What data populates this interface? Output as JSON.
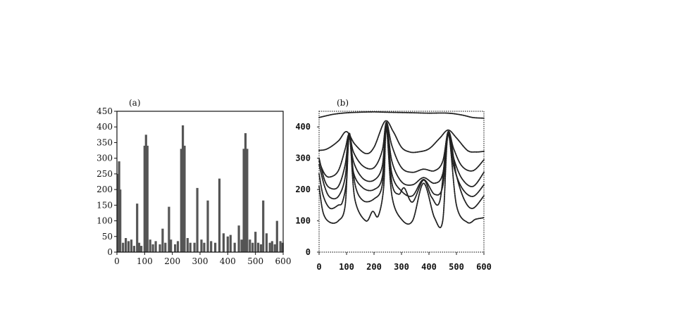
{
  "chart_data": [
    {
      "type": "bar",
      "panel_label": "(a)",
      "xlim": [
        0,
        600
      ],
      "ylim": [
        0,
        450
      ],
      "x_ticks": [
        0,
        100,
        200,
        300,
        400,
        500,
        600
      ],
      "y_ticks": [
        0,
        50,
        100,
        150,
        200,
        250,
        300,
        350,
        400,
        450
      ],
      "grid": false,
      "bar_color": "#555555",
      "bars": [
        {
          "x": 3,
          "y": 250
        },
        {
          "x": 8,
          "y": 290
        },
        {
          "x": 12,
          "y": 200
        },
        {
          "x": 22,
          "y": 30
        },
        {
          "x": 32,
          "y": 45
        },
        {
          "x": 42,
          "y": 35
        },
        {
          "x": 52,
          "y": 40
        },
        {
          "x": 62,
          "y": 20
        },
        {
          "x": 73,
          "y": 155
        },
        {
          "x": 80,
          "y": 30
        },
        {
          "x": 88,
          "y": 20
        },
        {
          "x": 100,
          "y": 340
        },
        {
          "x": 105,
          "y": 375
        },
        {
          "x": 110,
          "y": 340
        },
        {
          "x": 120,
          "y": 40
        },
        {
          "x": 130,
          "y": 25
        },
        {
          "x": 140,
          "y": 35
        },
        {
          "x": 155,
          "y": 25
        },
        {
          "x": 165,
          "y": 75
        },
        {
          "x": 175,
          "y": 30
        },
        {
          "x": 188,
          "y": 145
        },
        {
          "x": 195,
          "y": 40
        },
        {
          "x": 210,
          "y": 25
        },
        {
          "x": 220,
          "y": 35
        },
        {
          "x": 232,
          "y": 330
        },
        {
          "x": 238,
          "y": 405
        },
        {
          "x": 244,
          "y": 340
        },
        {
          "x": 255,
          "y": 45
        },
        {
          "x": 265,
          "y": 30
        },
        {
          "x": 280,
          "y": 30
        },
        {
          "x": 290,
          "y": 205
        },
        {
          "x": 305,
          "y": 40
        },
        {
          "x": 315,
          "y": 30
        },
        {
          "x": 328,
          "y": 165
        },
        {
          "x": 340,
          "y": 35
        },
        {
          "x": 355,
          "y": 30
        },
        {
          "x": 370,
          "y": 235
        },
        {
          "x": 385,
          "y": 60
        },
        {
          "x": 400,
          "y": 50
        },
        {
          "x": 410,
          "y": 55
        },
        {
          "x": 425,
          "y": 30
        },
        {
          "x": 440,
          "y": 85
        },
        {
          "x": 450,
          "y": 40
        },
        {
          "x": 458,
          "y": 330
        },
        {
          "x": 464,
          "y": 380
        },
        {
          "x": 470,
          "y": 330
        },
        {
          "x": 480,
          "y": 40
        },
        {
          "x": 490,
          "y": 30
        },
        {
          "x": 500,
          "y": 65
        },
        {
          "x": 510,
          "y": 30
        },
        {
          "x": 520,
          "y": 25
        },
        {
          "x": 528,
          "y": 165
        },
        {
          "x": 540,
          "y": 60
        },
        {
          "x": 552,
          "y": 30
        },
        {
          "x": 560,
          "y": 35
        },
        {
          "x": 570,
          "y": 25
        },
        {
          "x": 578,
          "y": 100
        },
        {
          "x": 590,
          "y": 35
        },
        {
          "x": 598,
          "y": 30
        }
      ]
    },
    {
      "type": "line",
      "panel_label": "(b)",
      "xlim": [
        0,
        600
      ],
      "ylim": [
        0,
        450
      ],
      "x_ticks": [
        0,
        100,
        200,
        300,
        400,
        500,
        600
      ],
      "y_ticks": [
        0,
        100,
        200,
        300,
        400
      ],
      "grid": false,
      "line_color": "#222222",
      "series": [
        {
          "x": [
            0,
            50,
            100,
            150,
            200,
            240,
            300,
            350,
            400,
            470,
            520,
            560,
            600
          ],
          "y": [
            430,
            440,
            445,
            447,
            448,
            447,
            446,
            445,
            444,
            444,
            438,
            430,
            428
          ]
        },
        {
          "x": [
            0,
            30,
            70,
            100,
            130,
            170,
            200,
            240,
            270,
            300,
            330,
            360,
            400,
            440,
            470,
            500,
            540,
            570,
            600
          ],
          "y": [
            325,
            330,
            355,
            385,
            345,
            315,
            335,
            418,
            385,
            335,
            320,
            320,
            330,
            365,
            390,
            365,
            325,
            320,
            322
          ]
        },
        {
          "x": [
            0,
            20,
            40,
            70,
            95,
            110,
            125,
            160,
            200,
            230,
            245,
            265,
            300,
            340,
            380,
            420,
            450,
            470,
            490,
            520,
            560,
            600
          ],
          "y": [
            290,
            250,
            240,
            260,
            330,
            378,
            320,
            275,
            270,
            325,
            415,
            340,
            270,
            255,
            265,
            260,
            290,
            385,
            330,
            275,
            260,
            295
          ]
        },
        {
          "x": [
            0,
            20,
            40,
            70,
            95,
            110,
            125,
            160,
            200,
            230,
            245,
            265,
            300,
            340,
            380,
            420,
            450,
            470,
            490,
            520,
            560,
            600
          ],
          "y": [
            300,
            230,
            205,
            210,
            280,
            380,
            290,
            235,
            230,
            275,
            410,
            290,
            225,
            215,
            238,
            220,
            250,
            385,
            300,
            235,
            210,
            255
          ]
        },
        {
          "x": [
            0,
            20,
            40,
            70,
            95,
            110,
            125,
            160,
            200,
            230,
            245,
            265,
            300,
            340,
            380,
            420,
            450,
            470,
            490,
            520,
            560,
            600
          ],
          "y": [
            280,
            210,
            175,
            178,
            240,
            378,
            255,
            205,
            200,
            240,
            405,
            250,
            195,
            180,
            232,
            185,
            210,
            380,
            275,
            205,
            178,
            215
          ]
        },
        {
          "x": [
            0,
            15,
            40,
            70,
            85,
            100,
            110,
            130,
            160,
            200,
            230,
            245,
            265,
            290,
            310,
            340,
            380,
            410,
            440,
            470,
            500,
            530,
            560,
            600
          ],
          "y": [
            250,
            180,
            140,
            150,
            160,
            230,
            375,
            220,
            165,
            170,
            215,
            400,
            220,
            185,
            205,
            160,
            230,
            175,
            165,
            378,
            245,
            165,
            140,
            180
          ]
        },
        {
          "x": [
            0,
            15,
            40,
            70,
            95,
            110,
            130,
            170,
            195,
            215,
            235,
            245,
            265,
            300,
            340,
            380,
            420,
            450,
            470,
            500,
            540,
            570,
            600
          ],
          "y": [
            210,
            125,
            95,
            100,
            150,
            370,
            170,
            100,
            130,
            115,
            205,
            395,
            180,
            105,
            100,
            220,
            110,
            100,
            375,
            150,
            95,
            105,
            110
          ]
        }
      ]
    }
  ]
}
